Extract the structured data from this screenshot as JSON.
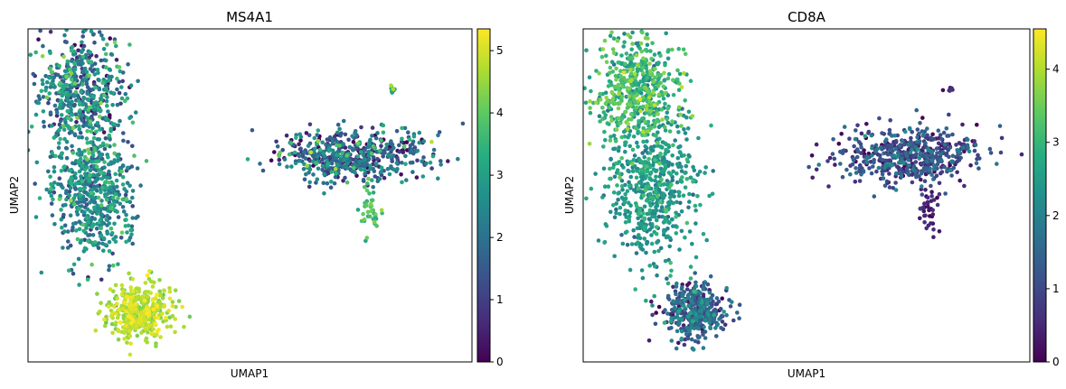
{
  "chart_data": [
    {
      "type": "scatter",
      "title": "MS4A1",
      "xlabel": "UMAP1",
      "ylabel": "UMAP2",
      "colormap": "viridis",
      "colorbar": {
        "min": 0,
        "max": 5.35,
        "ticks": [
          "0",
          "1",
          "2",
          "3",
          "4",
          "5"
        ]
      },
      "xlim": [
        0,
        100
      ],
      "ylim": [
        0,
        100
      ],
      "clusters": [
        {
          "name": "left-large-top",
          "cx": 12,
          "cy": 82,
          "sx": 5,
          "sy": 8,
          "n": 500,
          "value_mean": 2.1,
          "value_sd": 1.1
        },
        {
          "name": "left-large-bottom",
          "cx": 15,
          "cy": 52,
          "sx": 5,
          "sy": 11,
          "n": 600,
          "value_mean": 2.4,
          "value_sd": 0.7
        },
        {
          "name": "left-small",
          "cx": 25,
          "cy": 15,
          "sx": 3.5,
          "sy": 4,
          "n": 400,
          "value_mean": 4.7,
          "value_sd": 0.35
        },
        {
          "name": "right-blob",
          "cx": 73,
          "cy": 62,
          "sx": 8,
          "sy": 4,
          "n": 550,
          "value_mean": 1.6,
          "value_sd": 1.1
        },
        {
          "name": "right-tail",
          "cx": 77,
          "cy": 45,
          "sx": 1.2,
          "sy": 4,
          "n": 40,
          "value_mean": 3.7,
          "value_sd": 0.4
        },
        {
          "name": "right-dot",
          "cx": 82,
          "cy": 82,
          "sx": 0.4,
          "sy": 0.6,
          "n": 8,
          "value_mean": 3.5,
          "value_sd": 0.8
        }
      ]
    },
    {
      "type": "scatter",
      "title": "CD8A",
      "xlabel": "UMAP1",
      "ylabel": "UMAP2",
      "colormap": "viridis",
      "colorbar": {
        "min": 0,
        "max": 4.55,
        "ticks": [
          "0",
          "1",
          "2",
          "3",
          "4"
        ]
      },
      "xlim": [
        0,
        100
      ],
      "ylim": [
        0,
        100
      ],
      "clusters": [
        {
          "name": "left-large-top",
          "cx": 12,
          "cy": 82,
          "sx": 5,
          "sy": 8,
          "n": 500,
          "value_mean": 3.0,
          "value_sd": 0.5
        },
        {
          "name": "left-large-bottom",
          "cx": 15,
          "cy": 52,
          "sx": 5,
          "sy": 11,
          "n": 600,
          "value_mean": 2.4,
          "value_sd": 0.35
        },
        {
          "name": "left-small",
          "cx": 25,
          "cy": 15,
          "sx": 3.5,
          "sy": 4,
          "n": 400,
          "value_mean": 1.3,
          "value_sd": 0.6
        },
        {
          "name": "right-blob",
          "cx": 73,
          "cy": 62,
          "sx": 8,
          "sy": 4,
          "n": 550,
          "value_mean": 1.0,
          "value_sd": 0.6
        },
        {
          "name": "right-tail",
          "cx": 77,
          "cy": 45,
          "sx": 1.2,
          "sy": 4,
          "n": 40,
          "value_mean": 0.4,
          "value_sd": 0.3
        },
        {
          "name": "right-dot",
          "cx": 82,
          "cy": 82,
          "sx": 0.4,
          "sy": 0.6,
          "n": 8,
          "value_mean": 0.3,
          "value_sd": 0.2
        }
      ]
    }
  ]
}
